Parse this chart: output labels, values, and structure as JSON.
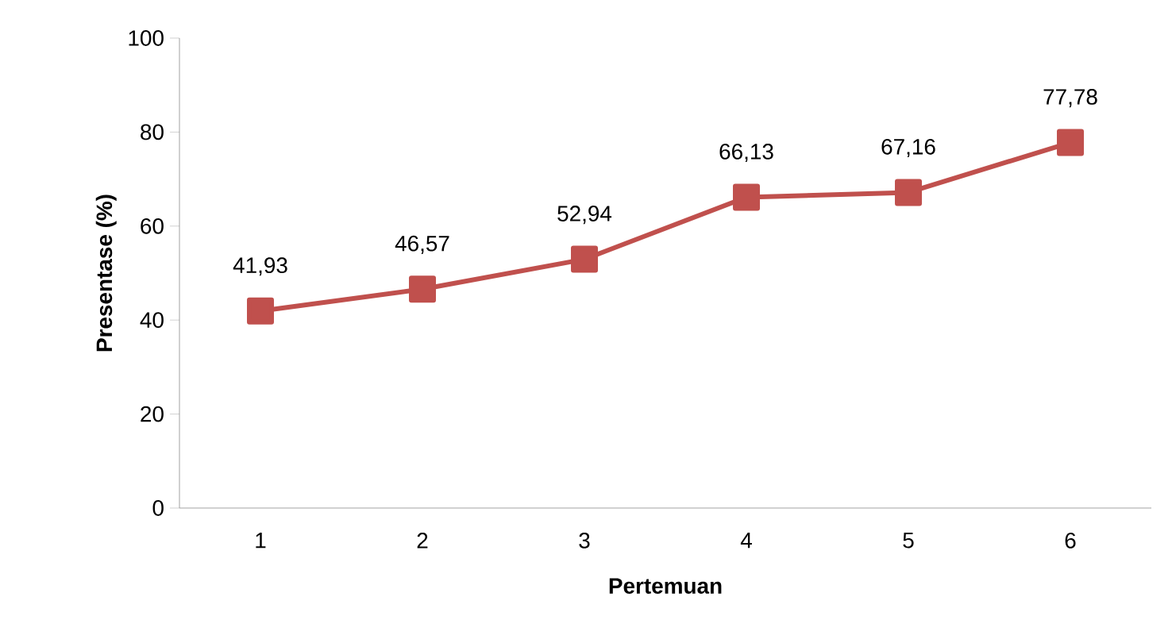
{
  "chart_data": {
    "type": "line",
    "xlabel": "Pertemuan",
    "ylabel": "Presentase (%)",
    "categories": [
      "1",
      "2",
      "3",
      "4",
      "5",
      "6"
    ],
    "series": [
      {
        "color": "#c0504d",
        "values": [
          41.93,
          46.57,
          52.94,
          66.13,
          67.16,
          77.78
        ],
        "value_labels": [
          "41,93",
          "46,57",
          "52,94",
          "66,13",
          "67,16",
          "77,78"
        ]
      }
    ],
    "ylim": [
      0,
      100
    ],
    "yticks": [
      0,
      20,
      40,
      60,
      80,
      100
    ],
    "marker": "square",
    "line_style": "solid"
  }
}
